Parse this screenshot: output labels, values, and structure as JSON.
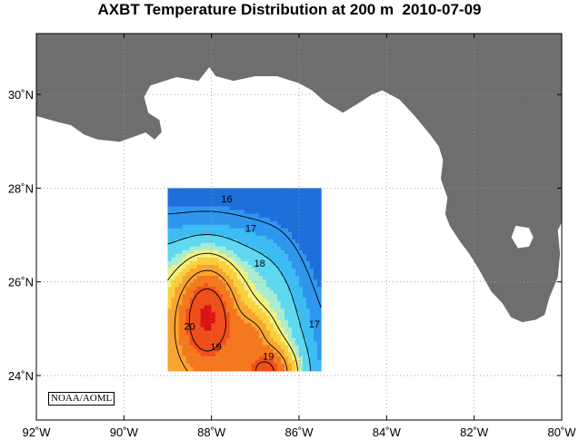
{
  "title": "AXBT Temperature Distribution at 200 m  2010-07-09",
  "credit": "NOAA/AOML",
  "colors": {
    "land": "#6e6e6e",
    "ocean": "#ffffff",
    "grid": "#9a9a9a",
    "contour_line": "#000000"
  },
  "chart_data": {
    "type": "heatmap",
    "title": "AXBT Temperature Distribution at 200 m  2010-07-09",
    "x_axis": {
      "unit": "deg longitude",
      "range": [
        -92,
        -80
      ],
      "ticks": [
        {
          "value": -92,
          "label": "92˚W"
        },
        {
          "value": -90,
          "label": "90˚W"
        },
        {
          "value": -88,
          "label": "88˚W"
        },
        {
          "value": -86,
          "label": "86˚W"
        },
        {
          "value": -84,
          "label": "84˚W"
        },
        {
          "value": -82,
          "label": "82˚W"
        },
        {
          "value": -80,
          "label": "80˚W"
        }
      ]
    },
    "y_axis": {
      "unit": "deg latitude",
      "range": [
        23.05,
        31.3
      ],
      "ticks": [
        {
          "value": 24,
          "label": "24˚N"
        },
        {
          "value": 26,
          "label": "26˚N"
        },
        {
          "value": 28,
          "label": "28˚N"
        },
        {
          "value": 30,
          "label": "30˚N"
        }
      ]
    },
    "grid": true,
    "survey_region": {
      "lon": [
        -89.0,
        -85.5
      ],
      "lat": [
        24.1,
        28.0
      ]
    },
    "color_scale": [
      {
        "temp": 15.0,
        "color": "#1e6fd9"
      },
      {
        "temp": 15.8,
        "color": "#2f96ee"
      },
      {
        "temp": 16.5,
        "color": "#3cbcf2"
      },
      {
        "temp": 17.0,
        "color": "#5fd8f0"
      },
      {
        "temp": 17.5,
        "color": "#a8ecd2"
      },
      {
        "temp": 17.8,
        "color": "#f2f080"
      },
      {
        "temp": 18.2,
        "color": "#fbd040"
      },
      {
        "temp": 18.6,
        "color": "#f9a531"
      },
      {
        "temp": 19.2,
        "color": "#f4781f"
      },
      {
        "temp": 19.8,
        "color": "#ee4f1c"
      },
      {
        "temp": 20.6,
        "color": "#d91414"
      }
    ],
    "field_features": [
      {
        "kind": "background",
        "temp": 17.2
      },
      {
        "kind": "north_gradient",
        "lat_center": 27.3,
        "lat_scale": 0.45,
        "amplitude": 2.3
      },
      {
        "kind": "south_gradient",
        "lat_center": 25.8,
        "lat_scale": 0.7,
        "amplitude": 1.3
      },
      {
        "kind": "east_gradient",
        "lon_center": -85.9,
        "lon_scale": 0.35,
        "amplitude": 2.6
      },
      {
        "kind": "warm_core",
        "lon": -88.1,
        "lat": 25.35,
        "sx": 0.5,
        "sy": 0.85,
        "amplitude": 2.7
      },
      {
        "kind": "warm_core",
        "lon": -86.7,
        "lat": 24.1,
        "sx": 0.45,
        "sy": 0.4,
        "amplitude": 2.0
      },
      {
        "kind": "warm_core",
        "lon": -87.05,
        "lat": 24.95,
        "sx": 0.3,
        "sy": 0.3,
        "amplitude": 0.8
      },
      {
        "kind": "cold_pocket",
        "lon": -86.4,
        "lat": 27.85,
        "sx": 0.5,
        "sy": 0.25,
        "amplitude": 0.9
      }
    ],
    "contour_levels": [
      16,
      17,
      18,
      19,
      20
    ],
    "contour_labels": [
      {
        "text": "16",
        "lon": -87.65,
        "lat": 27.78
      },
      {
        "text": "17",
        "lon": -87.1,
        "lat": 27.15
      },
      {
        "text": "18",
        "lon": -86.9,
        "lat": 26.4
      },
      {
        "text": "20",
        "lon": -88.5,
        "lat": 25.05
      },
      {
        "text": "19",
        "lon": -87.9,
        "lat": 24.62
      },
      {
        "text": "19",
        "lon": -86.7,
        "lat": 24.42
      },
      {
        "text": "17",
        "lon": -85.65,
        "lat": 25.1
      }
    ],
    "land_polygons": [
      {
        "name": "gulf-coast",
        "points": [
          [
            -92.0,
            31.3
          ],
          [
            -92.0,
            29.55
          ],
          [
            -91.5,
            29.42
          ],
          [
            -91.2,
            29.35
          ],
          [
            -90.9,
            29.15
          ],
          [
            -90.6,
            29.05
          ],
          [
            -90.1,
            29.0
          ],
          [
            -89.8,
            29.1
          ],
          [
            -89.5,
            29.2
          ],
          [
            -89.3,
            29.05
          ],
          [
            -89.15,
            29.2
          ],
          [
            -89.2,
            29.45
          ],
          [
            -89.45,
            29.6
          ],
          [
            -89.55,
            29.95
          ],
          [
            -89.4,
            30.2
          ],
          [
            -88.8,
            30.38
          ],
          [
            -88.3,
            30.3
          ],
          [
            -88.05,
            30.6
          ],
          [
            -87.9,
            30.4
          ],
          [
            -87.5,
            30.3
          ],
          [
            -87.0,
            30.4
          ],
          [
            -86.5,
            30.4
          ],
          [
            -86.0,
            30.25
          ],
          [
            -85.7,
            30.1
          ],
          [
            -85.4,
            29.85
          ],
          [
            -85.0,
            29.62
          ],
          [
            -84.6,
            29.85
          ],
          [
            -84.35,
            30.0
          ],
          [
            -84.1,
            30.1
          ],
          [
            -83.7,
            29.9
          ],
          [
            -83.35,
            29.55
          ],
          [
            -83.0,
            29.15
          ],
          [
            -82.8,
            28.9
          ],
          [
            -82.7,
            28.6
          ],
          [
            -82.75,
            28.2
          ],
          [
            -82.6,
            27.8
          ],
          [
            -82.65,
            27.45
          ],
          [
            -82.55,
            27.2
          ],
          [
            -82.3,
            26.85
          ],
          [
            -82.1,
            26.6
          ],
          [
            -81.9,
            26.3
          ],
          [
            -81.75,
            26.05
          ],
          [
            -81.6,
            25.8
          ],
          [
            -81.35,
            25.55
          ],
          [
            -81.15,
            25.25
          ],
          [
            -80.9,
            25.15
          ],
          [
            -80.6,
            25.2
          ],
          [
            -80.4,
            25.3
          ],
          [
            -80.3,
            25.65
          ],
          [
            -80.1,
            26.1
          ],
          [
            -80.05,
            26.6
          ],
          [
            -80.1,
            27.1
          ],
          [
            -80.0,
            27.3
          ],
          [
            -80.0,
            31.3
          ]
        ]
      }
    ],
    "lake_polygons": [
      {
        "name": "lake-okeechobee",
        "points": [
          [
            -81.05,
            27.2
          ],
          [
            -80.75,
            27.15
          ],
          [
            -80.65,
            26.95
          ],
          [
            -80.75,
            26.75
          ],
          [
            -81.0,
            26.72
          ],
          [
            -81.15,
            26.95
          ]
        ]
      }
    ]
  }
}
